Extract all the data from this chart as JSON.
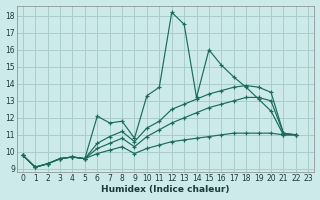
{
  "xlabel": "Humidex (Indice chaleur)",
  "bg_color": "#cceaea",
  "grid_color": "#aacccc",
  "line_color": "#1a6b5a",
  "xlim": [
    -0.5,
    23.5
  ],
  "ylim": [
    8.8,
    18.6
  ],
  "yticks": [
    9,
    10,
    11,
    12,
    13,
    14,
    15,
    16,
    17,
    18
  ],
  "xticks": [
    0,
    1,
    2,
    3,
    4,
    5,
    6,
    7,
    8,
    9,
    10,
    11,
    12,
    13,
    14,
    15,
    16,
    17,
    18,
    19,
    20,
    21,
    22,
    23
  ],
  "series": [
    [
      9.8,
      9.1,
      9.3,
      9.6,
      9.7,
      9.6,
      12.1,
      11.7,
      11.8,
      10.8,
      13.3,
      13.8,
      18.2,
      17.5,
      13.2,
      16.0,
      15.1,
      14.4,
      13.8,
      13.1,
      12.4,
      11.0,
      11.0
    ],
    [
      9.8,
      9.1,
      9.3,
      9.6,
      9.7,
      9.6,
      10.2,
      10.5,
      10.8,
      10.3,
      10.9,
      11.3,
      11.7,
      12.0,
      12.3,
      12.6,
      12.8,
      13.0,
      13.2,
      13.2,
      13.0,
      11.1,
      11.0
    ],
    [
      9.8,
      9.1,
      9.3,
      9.6,
      9.7,
      9.6,
      9.9,
      10.1,
      10.3,
      9.9,
      10.2,
      10.4,
      10.6,
      10.7,
      10.8,
      10.9,
      11.0,
      11.1,
      11.1,
      11.1,
      11.1,
      11.0,
      11.0
    ],
    [
      9.8,
      9.1,
      9.3,
      9.6,
      9.7,
      9.6,
      10.5,
      10.9,
      11.2,
      10.6,
      11.4,
      11.8,
      12.5,
      12.8,
      13.1,
      13.4,
      13.6,
      13.8,
      13.9,
      13.8,
      13.5,
      11.1,
      11.0
    ]
  ],
  "x_values": [
    0,
    1,
    2,
    3,
    4,
    5,
    6,
    7,
    8,
    9,
    10,
    11,
    12,
    13,
    14,
    15,
    16,
    17,
    18,
    19,
    20,
    21,
    22
  ],
  "tick_fontsize": 5.5,
  "xlabel_fontsize": 6.5
}
